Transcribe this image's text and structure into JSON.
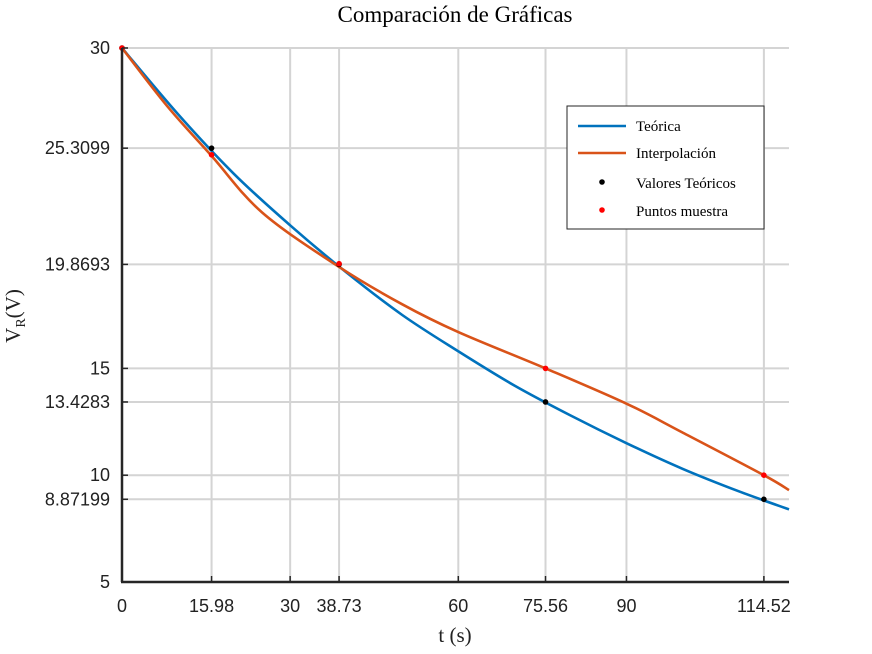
{
  "chart_data": {
    "type": "line",
    "title": "Comparación de Gráficas",
    "xlabel": "t (s)",
    "ylabel": "V_R(V)",
    "ylabel_main": "V",
    "ylabel_sub": "R",
    "ylabel_tail": "(V)",
    "xlim": [
      0,
      119
    ],
    "ylim": [
      5,
      30
    ],
    "xticks": [
      0,
      15.98,
      30,
      38.73,
      60,
      75.56,
      90,
      114.52
    ],
    "xtick_labels": [
      "0",
      "15.98",
      "30",
      "38.73",
      "60",
      "75.56",
      "90",
      "114.52"
    ],
    "yticks": [
      5,
      8.87199,
      10,
      13.4283,
      15,
      19.8693,
      25.3099,
      30
    ],
    "ytick_labels": [
      "5",
      "8.87199",
      "10",
      "13.4283",
      "15",
      "19.8693",
      "25.3099",
      "30"
    ],
    "grid": true,
    "legend_position": "top-right",
    "series": [
      {
        "name": "Teórica",
        "color": "#0072bd",
        "x": [
          0,
          10,
          20,
          30,
          40,
          50,
          60,
          70,
          80,
          90,
          100,
          110,
          119
        ],
        "y": [
          30,
          26.9,
          24.1,
          21.7,
          19.5,
          17.5,
          15.8,
          14.2,
          12.8,
          11.5,
          10.3,
          9.25,
          8.4
        ]
      },
      {
        "name": "Interpolación",
        "color": "#d95319",
        "x": [
          0,
          8,
          15.98,
          25,
          38.73,
          50,
          60,
          75.56,
          90,
          100,
          114.52,
          119
        ],
        "y": [
          30,
          27.3,
          24.95,
          22.3,
          19.75,
          18.0,
          16.7,
          15.0,
          13.35,
          12.0,
          10.0,
          9.3
        ]
      },
      {
        "name": "Valores Teóricos",
        "color": "#000000",
        "marker": "dot",
        "x": [
          0,
          15.98,
          38.73,
          75.56,
          114.52
        ],
        "y": [
          30,
          25.3099,
          19.8693,
          13.4283,
          8.87199
        ]
      },
      {
        "name": "Puntos muestra",
        "color": "#ff0000",
        "marker": "dot",
        "x": [
          0,
          15.98,
          38.73,
          75.56,
          114.52
        ],
        "y": [
          30,
          25.0,
          19.9,
          15.0,
          10.0
        ]
      }
    ]
  }
}
